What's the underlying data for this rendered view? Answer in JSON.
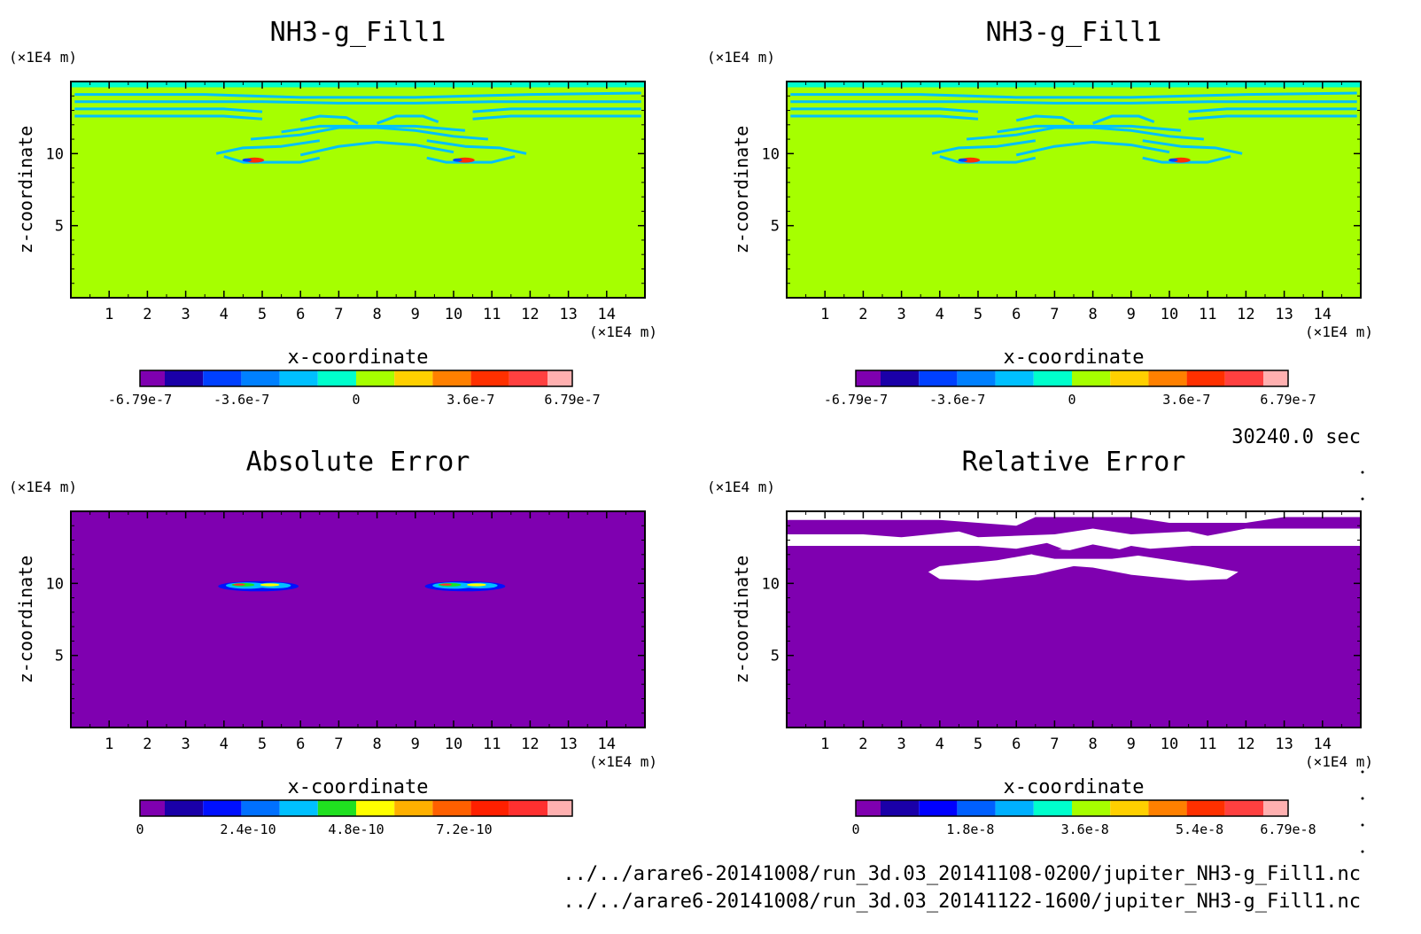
{
  "figure": {
    "time_label": "30240.0 sec",
    "file_paths": [
      "../../arare6-20141008/run_3d.03_20141108-0200/jupiter_NH3-g_Fill1.nc",
      "../../arare6-20141008/run_3d.03_20141122-1600/jupiter_NH3-g_Fill1.nc"
    ]
  },
  "chart_data": [
    {
      "type": "heatmap",
      "title": "NH3-g_Fill1",
      "xlabel": "x-coordinate",
      "ylabel": "z-coordinate",
      "x_unit": "(×1E4 m)",
      "y_unit": "(×1E4 m)",
      "xlim": [
        0,
        15
      ],
      "ylim": [
        0,
        15
      ],
      "x_ticks": [
        1,
        2,
        3,
        4,
        5,
        6,
        7,
        8,
        9,
        10,
        11,
        12,
        13,
        14
      ],
      "y_ticks": [
        5,
        10
      ],
      "background_value": 0,
      "features": "cyan contour bands near z=12-14 and an X-shaped pattern between x=4 and x=11 at z=10-12, small red/blue spots at x~4.8 and x~10.3, z~9.5",
      "colorbar": {
        "colors": [
          "#7f00b0",
          "#1a00a8",
          "#0040ff",
          "#0080ff",
          "#00c0ff",
          "#00ffcc",
          "#a6ff00",
          "#ffd000",
          "#ff8000",
          "#ff3000",
          "#ff4040",
          "#ffb0b0"
        ],
        "tick_labels": [
          "-6.79e-7",
          "-3.6e-7",
          "0",
          "3.6e-7",
          "6.79e-7"
        ],
        "tick_values": [
          -6.79e-07,
          -3.6e-07,
          0,
          3.6e-07,
          6.79e-07
        ],
        "range": [
          -6.79e-07,
          6.79e-07
        ]
      }
    },
    {
      "type": "heatmap",
      "title": "NH3-g_Fill1",
      "xlabel": "x-coordinate",
      "ylabel": "z-coordinate",
      "x_unit": "(×1E4 m)",
      "y_unit": "(×1E4 m)",
      "xlim": [
        0,
        15
      ],
      "ylim": [
        0,
        15
      ],
      "x_ticks": [
        1,
        2,
        3,
        4,
        5,
        6,
        7,
        8,
        9,
        10,
        11,
        12,
        13,
        14
      ],
      "y_ticks": [
        5,
        10
      ],
      "background_value": 0,
      "features": "identical to first panel",
      "colorbar": {
        "colors": [
          "#7f00b0",
          "#1a00a8",
          "#0040ff",
          "#0080ff",
          "#00c0ff",
          "#00ffcc",
          "#a6ff00",
          "#ffd000",
          "#ff8000",
          "#ff3000",
          "#ff4040",
          "#ffb0b0"
        ],
        "tick_labels": [
          "-6.79e-7",
          "-3.6e-7",
          "0",
          "3.6e-7",
          "6.79e-7"
        ],
        "tick_values": [
          -6.79e-07,
          -3.6e-07,
          0,
          3.6e-07,
          6.79e-07
        ],
        "range": [
          -6.79e-07,
          6.79e-07
        ]
      }
    },
    {
      "type": "heatmap",
      "title": "Absolute Error",
      "xlabel": "x-coordinate",
      "ylabel": "z-coordinate",
      "x_unit": "(×1E4 m)",
      "y_unit": "(×1E4 m)",
      "xlim": [
        0,
        15
      ],
      "ylim": [
        0,
        15
      ],
      "x_ticks": [
        1,
        2,
        3,
        4,
        5,
        6,
        7,
        8,
        9,
        10,
        11,
        12,
        13,
        14
      ],
      "y_ticks": [
        5,
        10
      ],
      "background_value": 0,
      "features": "two small error patches at x~4-6 and x~9-11, z~10",
      "colorbar": {
        "colors": [
          "#7f00b0",
          "#1a00a8",
          "#0010ff",
          "#0070ff",
          "#00c0ff",
          "#20e020",
          "#ffff00",
          "#ffb000",
          "#ff6000",
          "#ff2000",
          "#ff3030",
          "#ffb0b0"
        ],
        "tick_labels": [
          "0",
          "2.4e-10",
          "4.8e-10",
          "7.2e-10"
        ],
        "tick_values": [
          0,
          2.4e-10,
          4.8e-10,
          7.2e-10
        ],
        "range": [
          0,
          9.6e-10
        ]
      }
    },
    {
      "type": "heatmap",
      "title": "Relative Error",
      "xlabel": "x-coordinate",
      "ylabel": "z-coordinate",
      "x_unit": "(×1E4 m)",
      "y_unit": "(×1E4 m)",
      "xlim": [
        0,
        15
      ],
      "ylim": [
        0,
        15
      ],
      "x_ticks": [
        1,
        2,
        3,
        4,
        5,
        6,
        7,
        8,
        9,
        10,
        11,
        12,
        13,
        14
      ],
      "y_ticks": [
        5,
        10
      ],
      "background_value": 0,
      "features": "undefined (white) regions near z=12-15 and an X-shaped white pattern between x=4 and x=11 at z=10-13",
      "colorbar": {
        "colors": [
          "#7f00b0",
          "#1a00a8",
          "#0000ff",
          "#0060ff",
          "#00b0ff",
          "#00ffcc",
          "#a6ff00",
          "#ffd000",
          "#ff8000",
          "#ff3000",
          "#ff4040",
          "#ffb0b0"
        ],
        "tick_labels": [
          "0",
          "1.8e-8",
          "3.6e-8",
          "5.4e-8",
          "6.79e-8"
        ],
        "tick_values": [
          0,
          1.8e-08,
          3.6e-08,
          5.4e-08,
          6.79e-08
        ],
        "range": [
          0,
          6.79e-08
        ]
      }
    }
  ]
}
